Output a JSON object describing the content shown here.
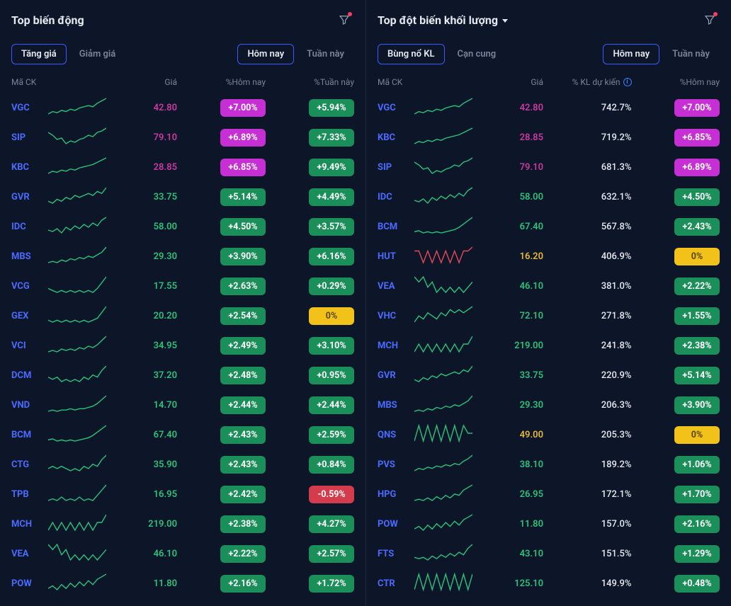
{
  "colors": {
    "bg": "#0d1528",
    "text": "#c5cdd8",
    "muted": "#7a8499",
    "bright": "#e6e9ef",
    "ticker_link": "#4a6bff",
    "divider": "#1e2a44",
    "accent_border": "#3a5cff",
    "price_green": "#2bc27a",
    "price_magenta": "#c83aa0",
    "price_yellow": "#e6b93a",
    "badge_green": "#1b8f5a",
    "badge_magenta": "#c52fd3",
    "badge_yellow": "#f2c21a",
    "badge_red": "#d43b4c",
    "spark_green": "#2bc27a",
    "spark_red": "#e04a5a",
    "filter_dot": "#ff3b5c"
  },
  "left": {
    "title": "Top biến động",
    "tabs_left": [
      {
        "label": "Tăng giá",
        "active": true
      },
      {
        "label": "Giảm giá",
        "active": false
      }
    ],
    "tabs_right": [
      {
        "label": "Hôm nay",
        "active": true
      },
      {
        "label": "Tuần này",
        "active": false
      }
    ],
    "headers": {
      "ticker": "Mã CK",
      "price": "Giá",
      "c3": "%Hôm nay",
      "c4": "%Tuần này"
    },
    "rows": [
      {
        "ticker": "VGC",
        "price": "42.80",
        "price_cls": "price-magenta",
        "c3": "+7.00%",
        "c3_cls": "badge-magenta",
        "c4": "+5.94%",
        "c4_cls": "badge-green",
        "spark_color": "green",
        "spark": [
          8,
          10,
          9,
          11,
          10,
          12,
          11,
          13,
          14,
          15,
          14,
          17,
          19,
          21
        ]
      },
      {
        "ticker": "SIP",
        "price": "79.10",
        "price_cls": "price-magenta",
        "c3": "+6.89%",
        "c3_cls": "badge-magenta",
        "c4": "+7.33%",
        "c4_cls": "badge-green",
        "spark_color": "green",
        "spark": [
          20,
          18,
          15,
          16,
          12,
          14,
          13,
          15,
          16,
          18,
          17,
          20,
          21,
          23
        ]
      },
      {
        "ticker": "KBC",
        "price": "28.85",
        "price_cls": "price-magenta",
        "c3": "+6.85%",
        "c3_cls": "badge-magenta",
        "c4": "+9.49%",
        "c4_cls": "badge-green",
        "spark_color": "green",
        "spark": [
          6,
          8,
          7,
          9,
          8,
          10,
          9,
          11,
          12,
          13,
          14,
          16,
          18,
          20
        ]
      },
      {
        "ticker": "GVR",
        "price": "33.75",
        "price_cls": "price-green",
        "c3": "+5.14%",
        "c3_cls": "badge-green",
        "c4": "+4.49%",
        "c4_cls": "badge-green",
        "spark_color": "green",
        "spark": [
          12,
          11,
          13,
          12,
          14,
          13,
          15,
          14,
          15,
          16,
          15,
          17,
          16,
          19
        ]
      },
      {
        "ticker": "IDC",
        "price": "58.00",
        "price_cls": "price-green",
        "c3": "+4.50%",
        "c3_cls": "badge-green",
        "c4": "+3.57%",
        "c4_cls": "badge-green",
        "spark_color": "green",
        "spark": [
          10,
          9,
          11,
          8,
          12,
          10,
          13,
          11,
          14,
          12,
          15,
          13,
          17,
          19
        ]
      },
      {
        "ticker": "MBS",
        "price": "29.30",
        "price_cls": "price-green",
        "c3": "+3.90%",
        "c3_cls": "badge-green",
        "c4": "+6.16%",
        "c4_cls": "badge-green",
        "spark_color": "green",
        "spark": [
          10,
          11,
          10,
          12,
          11,
          13,
          12,
          14,
          13,
          15,
          14,
          16,
          18,
          22
        ]
      },
      {
        "ticker": "VCG",
        "price": "17.55",
        "price_cls": "price-green",
        "c3": "+2.63%",
        "c3_cls": "badge-green",
        "c4": "+0.29%",
        "c4_cls": "badge-green",
        "spark_color": "green",
        "spark": [
          15,
          14,
          13,
          14,
          13,
          14,
          13,
          14,
          13,
          14,
          13,
          15,
          18,
          21
        ]
      },
      {
        "ticker": "GEX",
        "price": "20.20",
        "price_cls": "price-green",
        "c3": "+2.54%",
        "c3_cls": "badge-green",
        "c4": "0%",
        "c4_cls": "badge-yellow",
        "spark_color": "green",
        "spark": [
          14,
          13,
          14,
          13,
          14,
          13,
          14,
          13,
          14,
          13,
          14,
          15,
          18,
          21
        ]
      },
      {
        "ticker": "VCI",
        "price": "34.95",
        "price_cls": "price-green",
        "c3": "+2.49%",
        "c3_cls": "badge-green",
        "c4": "+3.10%",
        "c4_cls": "badge-green",
        "spark_color": "green",
        "spark": [
          10,
          11,
          10,
          12,
          11,
          12,
          11,
          13,
          12,
          14,
          13,
          15,
          18,
          21
        ]
      },
      {
        "ticker": "DCM",
        "price": "37.20",
        "price_cls": "price-green",
        "c3": "+2.48%",
        "c3_cls": "badge-green",
        "c4": "+0.95%",
        "c4_cls": "badge-green",
        "spark_color": "green",
        "spark": [
          14,
          13,
          14,
          12,
          13,
          12,
          13,
          12,
          14,
          13,
          15,
          14,
          17,
          19
        ]
      },
      {
        "ticker": "VND",
        "price": "14.70",
        "price_cls": "price-green",
        "c3": "+2.44%",
        "c3_cls": "badge-green",
        "c4": "+2.44%",
        "c4_cls": "badge-green",
        "spark_color": "green",
        "spark": [
          10,
          11,
          10,
          11,
          11,
          12,
          11,
          12,
          12,
          13,
          14,
          16,
          19,
          22
        ]
      },
      {
        "ticker": "BCM",
        "price": "67.40",
        "price_cls": "price-green",
        "c3": "+2.43%",
        "c3_cls": "badge-green",
        "c4": "+2.59%",
        "c4_cls": "badge-green",
        "spark_color": "green",
        "spark": [
          8,
          9,
          7,
          8,
          7,
          8,
          7,
          8,
          9,
          10,
          12,
          15,
          18,
          21
        ]
      },
      {
        "ticker": "CTG",
        "price": "35.90",
        "price_cls": "price-green",
        "c3": "+2.43%",
        "c3_cls": "badge-green",
        "c4": "+0.84%",
        "c4_cls": "badge-green",
        "spark_color": "green",
        "spark": [
          13,
          14,
          13,
          14,
          13,
          12,
          13,
          12,
          14,
          13,
          15,
          14,
          17,
          19
        ]
      },
      {
        "ticker": "TPB",
        "price": "16.95",
        "price_cls": "price-green",
        "c3": "+2.42%",
        "c3_cls": "badge-green",
        "c4": "-0.59%",
        "c4_cls": "badge-red",
        "spark_color": "green",
        "spark": [
          12,
          13,
          12,
          14,
          12,
          13,
          12,
          14,
          12,
          13,
          12,
          15,
          18,
          21
        ]
      },
      {
        "ticker": "MCH",
        "price": "219.00",
        "price_cls": "price-green",
        "c3": "+2.38%",
        "c3_cls": "badge-green",
        "c4": "+4.27%",
        "c4_cls": "badge-green",
        "spark_color": "green",
        "spark": [
          10,
          11,
          10,
          11,
          10,
          11,
          10,
          11,
          10,
          11,
          10,
          11,
          11,
          12
        ]
      },
      {
        "ticker": "VEA",
        "price": "46.10",
        "price_cls": "price-green",
        "c3": "+2.22%",
        "c3_cls": "badge-green",
        "c4": "+2.57%",
        "c4_cls": "badge-green",
        "spark_color": "green",
        "spark": [
          14,
          13,
          14,
          12,
          13,
          11,
          12,
          11,
          12,
          11,
          12,
          11,
          12,
          13
        ]
      },
      {
        "ticker": "POW",
        "price": "11.80",
        "price_cls": "price-green",
        "c3": "+2.16%",
        "c3_cls": "badge-green",
        "c4": "+1.72%",
        "c4_cls": "badge-green",
        "spark_color": "green",
        "spark": [
          9,
          11,
          8,
          12,
          9,
          13,
          10,
          14,
          11,
          15,
          12,
          16,
          18,
          20
        ]
      }
    ]
  },
  "right": {
    "title": "Top đột biến khối lượng",
    "tabs_left": [
      {
        "label": "Bùng nổ KL",
        "active": true
      },
      {
        "label": "Cạn cung",
        "active": false
      }
    ],
    "tabs_right": [
      {
        "label": "Hôm nay",
        "active": true
      },
      {
        "label": "Tuần này",
        "active": false
      }
    ],
    "headers": {
      "ticker": "Mã CK",
      "price": "Giá",
      "c3": "% KL dự kiến",
      "c4": "%Hôm nay"
    },
    "rows": [
      {
        "ticker": "VGC",
        "price": "42.80",
        "price_cls": "price-magenta",
        "c3": "742.7%",
        "c4": "+7.00%",
        "c4_cls": "badge-magenta",
        "spark_color": "green",
        "spark": [
          8,
          10,
          9,
          11,
          10,
          12,
          11,
          13,
          14,
          15,
          14,
          17,
          19,
          21
        ]
      },
      {
        "ticker": "KBC",
        "price": "28.85",
        "price_cls": "price-magenta",
        "c3": "719.2%",
        "c4": "+6.85%",
        "c4_cls": "badge-magenta",
        "spark_color": "green",
        "spark": [
          6,
          8,
          7,
          9,
          8,
          10,
          9,
          11,
          12,
          13,
          14,
          16,
          18,
          20
        ]
      },
      {
        "ticker": "SIP",
        "price": "79.10",
        "price_cls": "price-magenta",
        "c3": "681.3%",
        "c4": "+6.89%",
        "c4_cls": "badge-magenta",
        "spark_color": "green",
        "spark": [
          20,
          18,
          15,
          16,
          12,
          14,
          13,
          15,
          16,
          18,
          17,
          20,
          21,
          23
        ]
      },
      {
        "ticker": "IDC",
        "price": "58.00",
        "price_cls": "price-green",
        "c3": "632.1%",
        "c4": "+4.50%",
        "c4_cls": "badge-green",
        "spark_color": "green",
        "spark": [
          10,
          9,
          11,
          8,
          12,
          10,
          13,
          11,
          14,
          12,
          15,
          13,
          17,
          19
        ]
      },
      {
        "ticker": "BCM",
        "price": "67.40",
        "price_cls": "price-green",
        "c3": "567.8%",
        "c4": "+2.43%",
        "c4_cls": "badge-green",
        "spark_color": "green",
        "spark": [
          8,
          9,
          7,
          8,
          7,
          8,
          7,
          8,
          9,
          10,
          12,
          15,
          18,
          21
        ]
      },
      {
        "ticker": "HUT",
        "price": "16.20",
        "price_cls": "price-yellow",
        "c3": "406.9%",
        "c4": "0%",
        "c4_cls": "badge-yellow",
        "spark_color": "red",
        "spark": [
          14,
          14,
          8,
          14,
          8,
          14,
          8,
          14,
          8,
          14,
          8,
          14,
          14,
          16
        ]
      },
      {
        "ticker": "VEA",
        "price": "46.10",
        "price_cls": "price-green",
        "c3": "381.0%",
        "c4": "+2.22%",
        "c4_cls": "badge-green",
        "spark_color": "green",
        "spark": [
          14,
          13,
          14,
          12,
          13,
          11,
          12,
          11,
          12,
          11,
          12,
          11,
          12,
          13
        ]
      },
      {
        "ticker": "VHC",
        "price": "72.10",
        "price_cls": "price-green",
        "c3": "271.8%",
        "c4": "+1.55%",
        "c4_cls": "badge-green",
        "spark_color": "green",
        "spark": [
          10,
          12,
          11,
          13,
          12,
          11,
          13,
          12,
          14,
          13,
          14,
          13,
          14,
          15
        ]
      },
      {
        "ticker": "MCH",
        "price": "219.00",
        "price_cls": "price-green",
        "c3": "241.8%",
        "c4": "+2.38%",
        "c4_cls": "badge-green",
        "spark_color": "green",
        "spark": [
          10,
          11,
          10,
          11,
          10,
          11,
          10,
          11,
          10,
          11,
          10,
          11,
          11,
          12
        ]
      },
      {
        "ticker": "GVR",
        "price": "33.75",
        "price_cls": "price-green",
        "c3": "220.9%",
        "c4": "+5.14%",
        "c4_cls": "badge-green",
        "spark_color": "green",
        "spark": [
          12,
          11,
          13,
          12,
          14,
          13,
          15,
          14,
          15,
          16,
          15,
          17,
          16,
          19
        ]
      },
      {
        "ticker": "MBS",
        "price": "29.30",
        "price_cls": "price-green",
        "c3": "206.3%",
        "c4": "+3.90%",
        "c4_cls": "badge-green",
        "spark_color": "green",
        "spark": [
          10,
          11,
          10,
          12,
          11,
          13,
          12,
          14,
          13,
          15,
          14,
          16,
          18,
          22
        ]
      },
      {
        "ticker": "QNS",
        "price": "49.00",
        "price_cls": "price-yellow",
        "c3": "205.3%",
        "c4": "0%",
        "c4_cls": "badge-yellow",
        "spark_color": "green",
        "spark": [
          6,
          18,
          6,
          18,
          6,
          18,
          6,
          18,
          6,
          18,
          6,
          18,
          12,
          12
        ]
      },
      {
        "ticker": "PVS",
        "price": "38.10",
        "price_cls": "price-green",
        "c3": "189.2%",
        "c4": "+1.06%",
        "c4_cls": "badge-green",
        "spark_color": "green",
        "spark": [
          10,
          12,
          11,
          13,
          12,
          14,
          13,
          15,
          14,
          16,
          15,
          18,
          20,
          23
        ]
      },
      {
        "ticker": "HPG",
        "price": "26.95",
        "price_cls": "price-green",
        "c3": "172.1%",
        "c4": "+1.70%",
        "c4_cls": "badge-green",
        "spark_color": "green",
        "spark": [
          10,
          11,
          10,
          12,
          10,
          13,
          11,
          14,
          12,
          15,
          14,
          18,
          20,
          22
        ]
      },
      {
        "ticker": "POW",
        "price": "11.80",
        "price_cls": "price-green",
        "c3": "157.0%",
        "c4": "+2.16%",
        "c4_cls": "badge-green",
        "spark_color": "green",
        "spark": [
          9,
          11,
          8,
          12,
          9,
          13,
          10,
          14,
          11,
          15,
          12,
          16,
          18,
          20
        ]
      },
      {
        "ticker": "FTS",
        "price": "43.10",
        "price_cls": "price-green",
        "c3": "151.5%",
        "c4": "+1.29%",
        "c4_cls": "badge-green",
        "spark_color": "green",
        "spark": [
          12,
          11,
          12,
          10,
          13,
          11,
          14,
          12,
          15,
          13,
          16,
          14,
          19,
          22
        ]
      },
      {
        "ticker": "CTR",
        "price": "125.10",
        "price_cls": "price-green",
        "c3": "149.9%",
        "c4": "+0.48%",
        "c4_cls": "badge-green",
        "spark_color": "green",
        "spark": [
          11,
          12,
          11,
          12,
          11,
          12,
          11,
          12,
          11,
          12,
          11,
          12,
          11,
          12
        ]
      }
    ]
  }
}
